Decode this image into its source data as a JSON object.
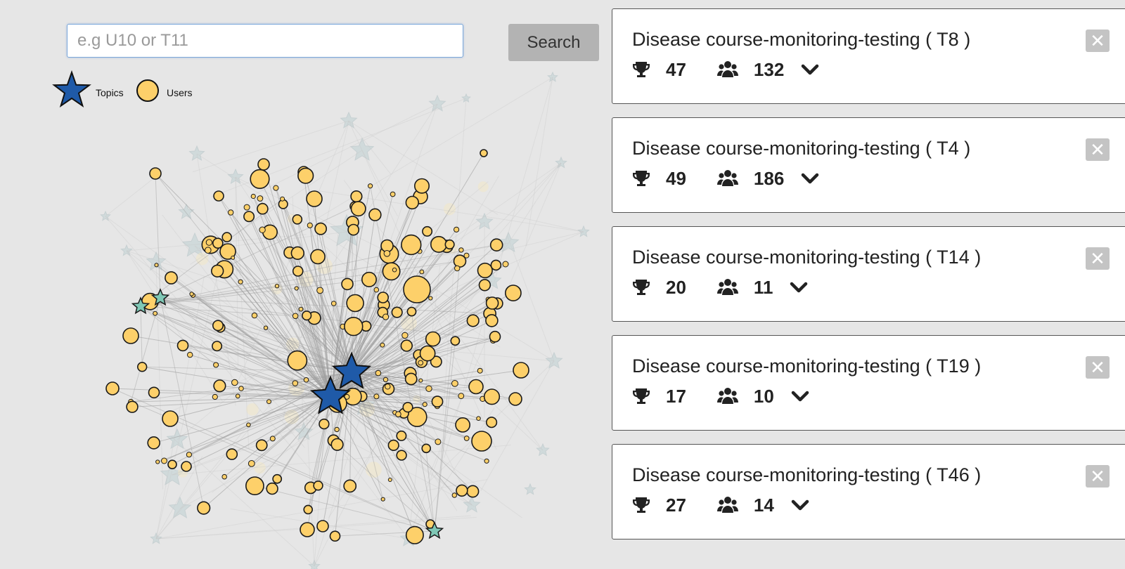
{
  "search": {
    "placeholder": "e.g U10 or T11",
    "button_label": "Search"
  },
  "legend": {
    "topics_label": "Topics",
    "users_label": "Users",
    "topics_color": "#1f5aa8",
    "users_color": "#fdd06a",
    "minor_topic_color": "#7fc8b6"
  },
  "cards": [
    {
      "title": "Disease course-monitoring-testing ( T8 )",
      "score": "47",
      "users": "132"
    },
    {
      "title": "Disease course-monitoring-testing ( T4 )",
      "score": "49",
      "users": "186"
    },
    {
      "title": "Disease course-monitoring-testing ( T14 )",
      "score": "20",
      "users": "11"
    },
    {
      "title": "Disease course-monitoring-testing ( T19 )",
      "score": "17",
      "users": "10"
    },
    {
      "title": "Disease course-monitoring-testing ( T46 )",
      "score": "27",
      "users": "14"
    }
  ],
  "icons": {
    "score": "trophy-icon",
    "users": "users-group-icon",
    "expand": "chevron-down-icon",
    "close": "close-icon"
  }
}
